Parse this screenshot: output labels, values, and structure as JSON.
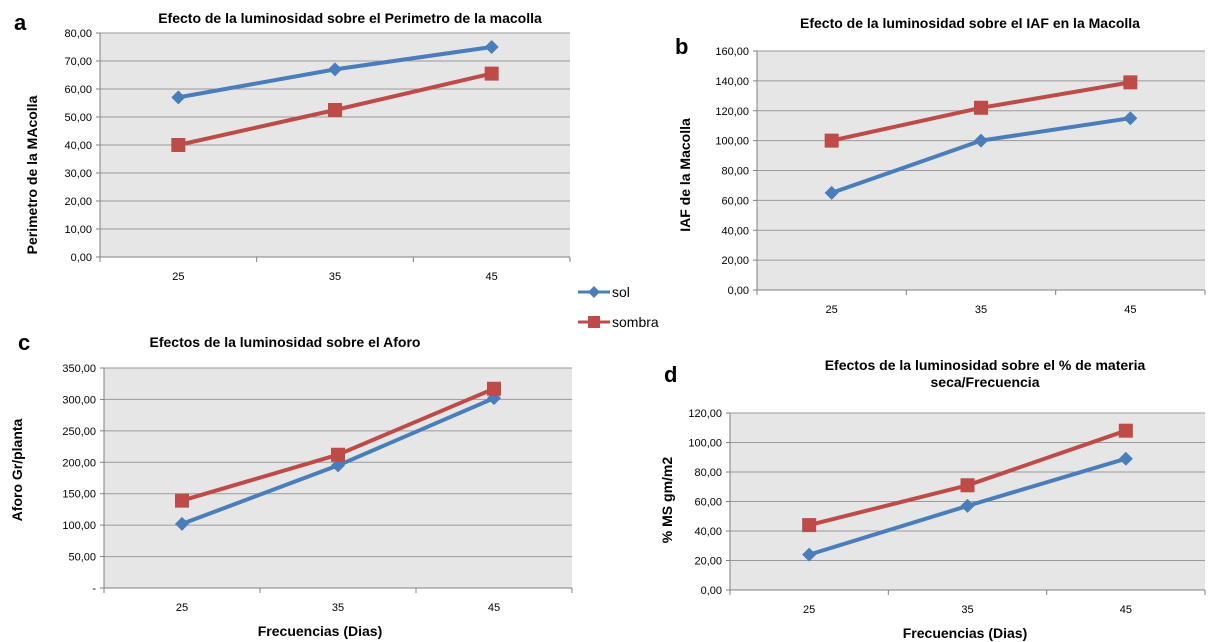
{
  "colors": {
    "sol": "#4a7ebb",
    "sombra": "#be4b48",
    "plot_bg": "#e6e6e6",
    "grid": "#9a9a9a"
  },
  "legend": {
    "sol": "sol",
    "sombra": "sombra"
  },
  "chart_data": [
    {
      "id": "a",
      "panel_letter": "a",
      "type": "line",
      "title": "Efecto de la luminosidad sobre el Perimetro de la macolla",
      "title_lines": [
        "Efecto de la luminosidad sobre el Perimetro de la macolla"
      ],
      "xlabel": "",
      "ylabel": "Perimetro de la MAcolla",
      "categories": [
        "25",
        "35",
        "45"
      ],
      "ylim": [
        0,
        80
      ],
      "yticks": [
        "0,00",
        "10,00",
        "20,00",
        "30,00",
        "40,00",
        "50,00",
        "60,00",
        "70,00",
        "80,00"
      ],
      "grid": true,
      "series": [
        {
          "name": "sol",
          "marker": "diamond",
          "values": [
            57,
            67,
            75
          ]
        },
        {
          "name": "sombra",
          "marker": "square",
          "values": [
            40,
            52.5,
            65.5
          ]
        }
      ]
    },
    {
      "id": "b",
      "panel_letter": "b",
      "type": "line",
      "title": "Efecto de la luminosidad sobre el IAF en la Macolla",
      "title_lines": [
        "Efecto de la luminosidad sobre el IAF en la Macolla"
      ],
      "xlabel": "",
      "ylabel": "IAF de la Macolla",
      "categories": [
        "25",
        "35",
        "45"
      ],
      "ylim": [
        0,
        160
      ],
      "yticks": [
        "0,00",
        "20,00",
        "40,00",
        "60,00",
        "80,00",
        "100,00",
        "120,00",
        "140,00",
        "160,00"
      ],
      "grid": true,
      "series": [
        {
          "name": "sol",
          "marker": "diamond",
          "values": [
            65,
            100,
            115
          ]
        },
        {
          "name": "sombra",
          "marker": "square",
          "values": [
            100,
            122,
            139
          ]
        }
      ]
    },
    {
      "id": "c",
      "panel_letter": "c",
      "type": "line",
      "title": "Efectos de la luminosidad sobre el Aforo",
      "title_lines": [
        "Efectos de la luminosidad sobre el Aforo"
      ],
      "xlabel": "Frecuencias (Dias)",
      "ylabel": "Aforo Gr/planta",
      "categories": [
        "25",
        "35",
        "45"
      ],
      "ylim": [
        0,
        350
      ],
      "yticks": [
        "-",
        "50,00",
        "100,00",
        "150,00",
        "200,00",
        "250,00",
        "300,00",
        "350,00"
      ],
      "grid": true,
      "series": [
        {
          "name": "sol",
          "marker": "diamond",
          "values": [
            102,
            195,
            302
          ]
        },
        {
          "name": "sombra",
          "marker": "square",
          "values": [
            139,
            212,
            317
          ]
        }
      ]
    },
    {
      "id": "d",
      "panel_letter": "d",
      "type": "line",
      "title": "Efectos de la luminosidad sobre el % de materia seca/Frecuencia",
      "title_lines": [
        "Efectos de la luminosidad sobre el % de materia",
        "seca/Frecuencia"
      ],
      "xlabel": "Frecuencias (Dias)",
      "ylabel": "% MS gm/m2",
      "categories": [
        "25",
        "35",
        "45"
      ],
      "ylim": [
        0,
        120
      ],
      "yticks": [
        "0,00",
        "20,00",
        "40,00",
        "60,00",
        "80,00",
        "100,00",
        "120,00"
      ],
      "grid": true,
      "series": [
        {
          "name": "sol",
          "marker": "diamond",
          "values": [
            24,
            57,
            89
          ]
        },
        {
          "name": "sombra",
          "marker": "square",
          "values": [
            44,
            71,
            108
          ]
        }
      ]
    }
  ]
}
